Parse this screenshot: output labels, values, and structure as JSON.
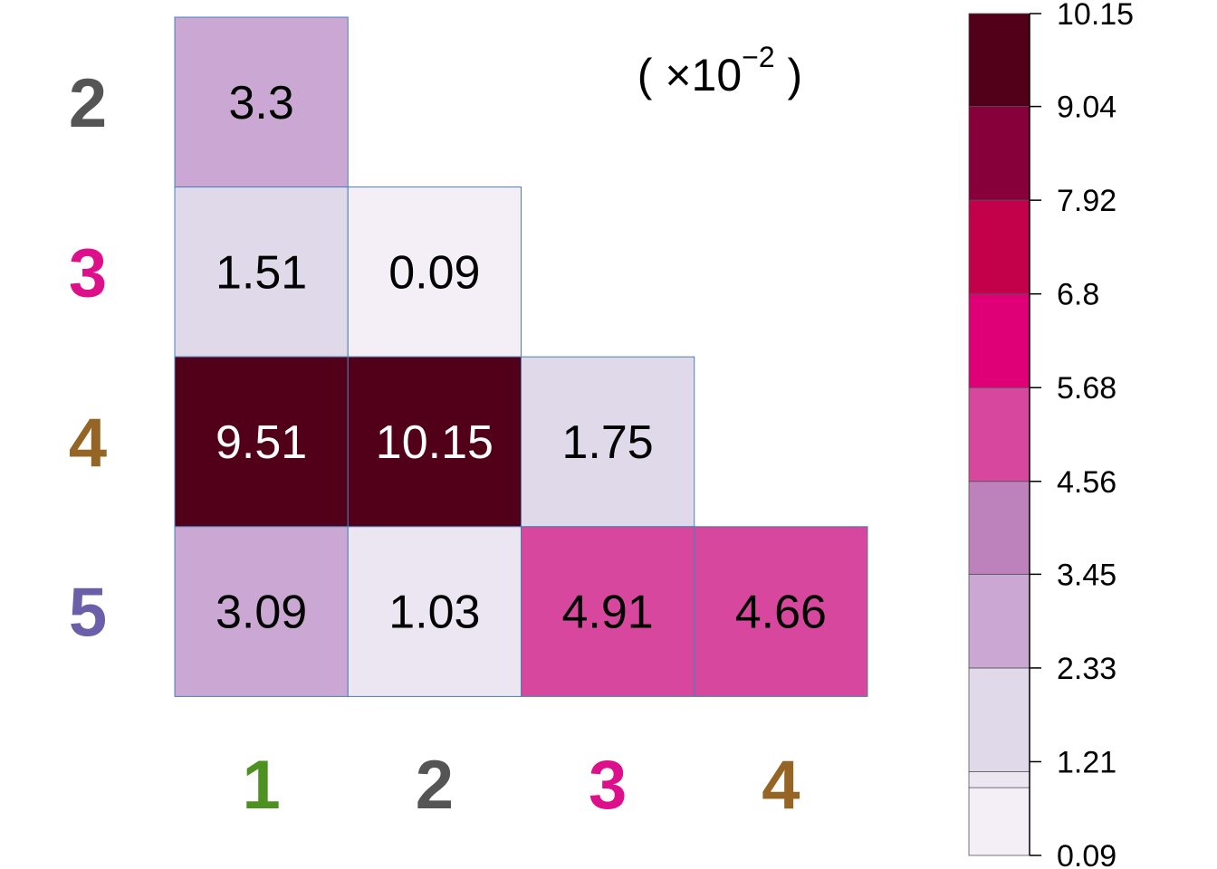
{
  "chart_data": {
    "type": "heatmap",
    "shape": "lower-triangle",
    "row_labels": [
      "2",
      "3",
      "4",
      "5"
    ],
    "col_labels": [
      "1",
      "2",
      "3",
      "4"
    ],
    "label_colors": {
      "1": "#4d9221",
      "2": "#555555",
      "3": "#dd0f8a",
      "4": "#956526",
      "5": "#6a5fa8"
    },
    "cells": [
      {
        "row": "2",
        "col": "1",
        "value": 3.3,
        "label": "3.3"
      },
      {
        "row": "3",
        "col": "1",
        "value": 1.51,
        "label": "1.51"
      },
      {
        "row": "3",
        "col": "2",
        "value": 0.09,
        "label": "0.09"
      },
      {
        "row": "4",
        "col": "1",
        "value": 9.51,
        "label": "9.51"
      },
      {
        "row": "4",
        "col": "2",
        "value": 10.15,
        "label": "10.15"
      },
      {
        "row": "4",
        "col": "3",
        "value": 1.75,
        "label": "1.75"
      },
      {
        "row": "5",
        "col": "1",
        "value": 3.09,
        "label": "3.09"
      },
      {
        "row": "5",
        "col": "2",
        "value": 1.03,
        "label": "1.03"
      },
      {
        "row": "5",
        "col": "3",
        "value": 4.91,
        "label": "4.91"
      },
      {
        "row": "5",
        "col": "4",
        "value": 4.66,
        "label": "4.66"
      }
    ],
    "scale_note": {
      "prefix": "( ×10",
      "exponent": "−2",
      "suffix": " )"
    },
    "colorbar": {
      "range": [
        0.09,
        10.15
      ],
      "tick_labels": [
        "0.09",
        "1.21",
        "2.33",
        "3.45",
        "4.56",
        "5.68",
        "6.8",
        "7.92",
        "9.04",
        "10.15"
      ],
      "tick_values": [
        0.09,
        1.21,
        2.33,
        3.45,
        4.56,
        5.68,
        6.8,
        7.92,
        9.04,
        10.15
      ],
      "bins": [
        {
          "from": 0.09,
          "to": 0.9,
          "color": "#f4eff6"
        },
        {
          "from": 0.9,
          "to": 1.09,
          "color": "#ece6f2"
        },
        {
          "from": 1.09,
          "to": 2.33,
          "color": "#e0d9ea"
        },
        {
          "from": 2.33,
          "to": 3.45,
          "color": "#cba8d3"
        },
        {
          "from": 3.45,
          "to": 4.56,
          "color": "#bd82bb"
        },
        {
          "from": 4.56,
          "to": 5.68,
          "color": "#d6479d"
        },
        {
          "from": 5.68,
          "to": 6.8,
          "color": "#df0077"
        },
        {
          "from": 6.8,
          "to": 7.92,
          "color": "#c3004a"
        },
        {
          "from": 7.92,
          "to": 9.04,
          "color": "#88003a"
        },
        {
          "from": 9.04,
          "to": 10.15,
          "color": "#52001a"
        }
      ]
    },
    "dark_text_threshold": 7.92,
    "grid_line_color": "#4a7fb5"
  }
}
